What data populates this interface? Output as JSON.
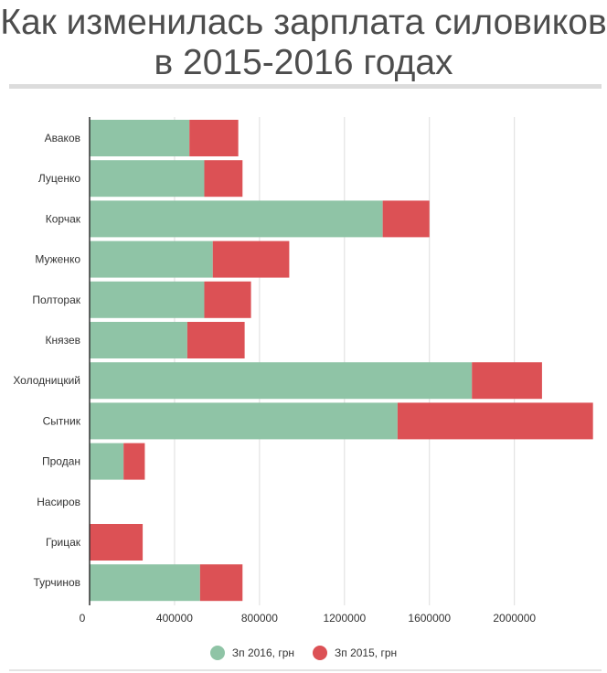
{
  "title": "Как изменилась зарплата силовиков в 2015-2016 годах",
  "colors": {
    "series2016": "#8fc4a6",
    "series2015": "#dc5155"
  },
  "chart_data": {
    "type": "bar",
    "orientation": "horizontal",
    "stacked": true,
    "title": "Как изменилась зарплата силовиков в 2015-2016 годах",
    "categories": [
      "Аваков",
      "Луценко",
      "Корчак",
      "Муженко",
      "Полторак",
      "Князев",
      "Холодницкий",
      "Сытник",
      "Продан",
      "Насиров",
      "Грицак",
      "Турчинов"
    ],
    "series": [
      {
        "name": "Зп 2016, грн",
        "values": [
          470000,
          540000,
          1380000,
          580000,
          540000,
          460000,
          1800000,
          1450000,
          160000,
          0,
          0,
          520000
        ]
      },
      {
        "name": "Зп 2015, грн",
        "values": [
          230000,
          180000,
          220000,
          360000,
          220000,
          270000,
          330000,
          920000,
          100000,
          0,
          250000,
          200000
        ]
      }
    ],
    "xticks": [
      "0",
      "400000",
      "800000",
      "1200000",
      "1600000",
      "2000000"
    ],
    "xlim": [
      0,
      2380000
    ],
    "grid": true,
    "legend": "bottom"
  }
}
